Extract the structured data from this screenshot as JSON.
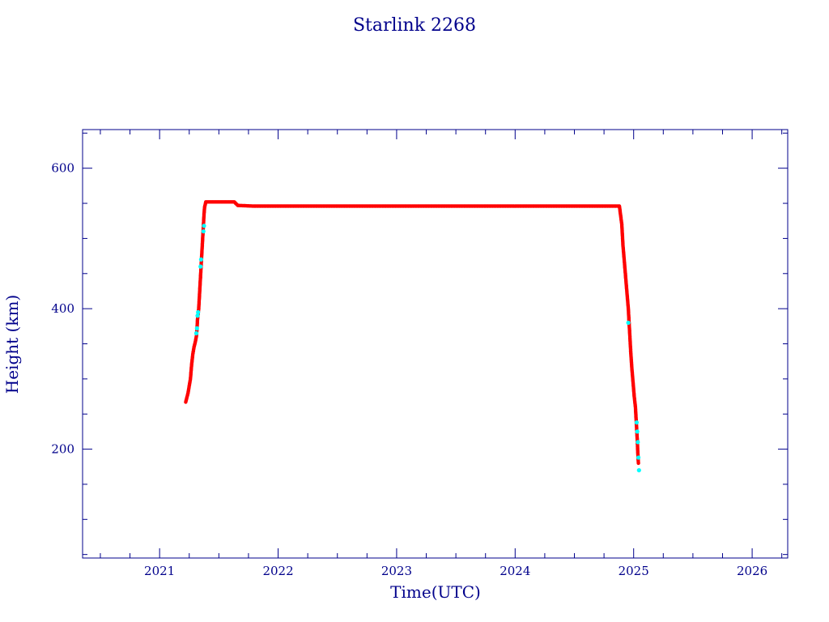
{
  "chart_data": {
    "type": "scatter",
    "title": "Starlink 2268",
    "xlabel": "Time(UTC)",
    "ylabel": "Height (km)",
    "xlim": [
      2020.35,
      2026.3
    ],
    "ylim": [
      45,
      655
    ],
    "x_ticks": [
      2021,
      2022,
      2023,
      2024,
      2025,
      2026
    ],
    "y_ticks": [
      200,
      400,
      600
    ],
    "y_minor_step": 50,
    "x_minor_step": 0.25,
    "grid": false,
    "series": [
      {
        "color": "#ff0000",
        "points": [
          [
            2021.22,
            267
          ],
          [
            2021.24,
            280
          ],
          [
            2021.26,
            300
          ],
          [
            2021.27,
            320
          ],
          [
            2021.28,
            335
          ],
          [
            2021.29,
            345
          ],
          [
            2021.3,
            352
          ],
          [
            2021.31,
            360
          ],
          [
            2021.315,
            370
          ],
          [
            2021.32,
            385
          ],
          [
            2021.33,
            400
          ],
          [
            2021.335,
            415
          ],
          [
            2021.34,
            430
          ],
          [
            2021.345,
            445
          ],
          [
            2021.35,
            460
          ],
          [
            2021.355,
            475
          ],
          [
            2021.36,
            490
          ],
          [
            2021.365,
            505
          ],
          [
            2021.37,
            520
          ],
          [
            2021.375,
            535
          ],
          [
            2021.38,
            545
          ],
          [
            2021.39,
            552
          ],
          [
            2021.45,
            552
          ],
          [
            2021.55,
            552
          ],
          [
            2021.63,
            552
          ],
          [
            2021.66,
            547
          ],
          [
            2021.8,
            546
          ],
          [
            2022.0,
            546
          ],
          [
            2022.2,
            546
          ],
          [
            2022.4,
            546
          ],
          [
            2022.6,
            546
          ],
          [
            2022.8,
            546
          ],
          [
            2023.0,
            546
          ],
          [
            2023.2,
            546
          ],
          [
            2023.4,
            546
          ],
          [
            2023.6,
            546
          ],
          [
            2023.8,
            546
          ],
          [
            2024.0,
            546
          ],
          [
            2024.2,
            546
          ],
          [
            2024.4,
            546
          ],
          [
            2024.6,
            546
          ],
          [
            2024.8,
            546
          ],
          [
            2024.88,
            546
          ],
          [
            2024.9,
            520
          ],
          [
            2024.91,
            490
          ],
          [
            2024.925,
            460
          ],
          [
            2024.94,
            430
          ],
          [
            2024.955,
            400
          ],
          [
            2024.965,
            370
          ],
          [
            2024.975,
            340
          ],
          [
            2024.985,
            315
          ],
          [
            2024.995,
            295
          ],
          [
            2025.005,
            275
          ],
          [
            2025.015,
            260
          ],
          [
            2025.02,
            245
          ],
          [
            2025.025,
            230
          ],
          [
            2025.03,
            215
          ],
          [
            2025.035,
            195
          ],
          [
            2025.04,
            180
          ]
        ]
      },
      {
        "color": "#00ffff",
        "points": [
          [
            2021.31,
            365
          ],
          [
            2021.315,
            372
          ],
          [
            2021.32,
            390
          ],
          [
            2021.325,
            395
          ],
          [
            2021.345,
            460
          ],
          [
            2021.35,
            470
          ],
          [
            2021.37,
            510
          ],
          [
            2021.375,
            518
          ],
          [
            2024.955,
            380
          ],
          [
            2025.025,
            238
          ],
          [
            2025.03,
            225
          ],
          [
            2025.035,
            210
          ],
          [
            2025.04,
            188
          ],
          [
            2025.045,
            170
          ]
        ]
      }
    ]
  }
}
